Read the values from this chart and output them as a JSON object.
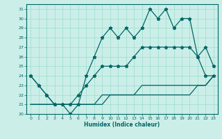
{
  "xlabel": "Humidex (Indice chaleur)",
  "x": [
    0,
    1,
    2,
    3,
    4,
    5,
    6,
    7,
    8,
    9,
    10,
    11,
    12,
    13,
    14,
    15,
    16,
    17,
    18,
    19,
    20,
    21,
    22,
    23
  ],
  "line1": [
    24,
    23,
    22,
    21,
    21,
    20,
    21,
    24,
    26,
    28,
    29,
    28,
    29,
    28,
    29,
    31,
    30,
    31,
    29,
    30,
    30,
    26,
    27,
    25
  ],
  "line2": [
    24,
    23,
    22,
    21,
    21,
    21,
    22,
    23,
    24,
    25,
    25,
    25,
    25,
    26,
    27,
    27,
    27,
    27,
    27,
    27,
    27,
    26,
    24,
    24
  ],
  "line3": [
    21,
    21,
    21,
    21,
    21,
    21,
    21,
    21,
    21,
    22,
    22,
    22,
    22,
    22,
    23,
    23,
    23,
    23,
    23,
    23,
    23,
    23,
    23,
    24
  ],
  "line4": [
    21,
    21,
    21,
    21,
    21,
    21,
    21,
    21,
    21,
    21,
    22,
    22,
    22,
    22,
    22,
    22,
    22,
    22,
    22,
    22,
    22,
    23,
    23,
    24
  ],
  "ylim": [
    20,
    31.5
  ],
  "xlim": [
    -0.5,
    23.5
  ],
  "color": "#006666",
  "bg_color": "#cceee8",
  "grid_color": "#99ddcc"
}
